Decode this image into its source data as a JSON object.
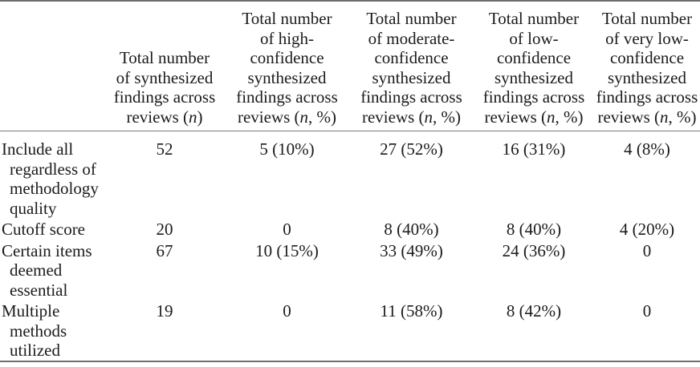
{
  "colors": {
    "text": "#1b1b1b",
    "rule": "#6e6e6e",
    "header_rule": "#7a7a7a",
    "background": "#ffffff"
  },
  "table": {
    "columns": [
      {
        "id": "strategy",
        "header_lines": []
      },
      {
        "id": "total-synthesized",
        "header_lines": [
          "Total number",
          "of synthesized",
          "findings across",
          "reviews (*n*)"
        ]
      },
      {
        "id": "high-confidence",
        "header_lines": [
          "Total number",
          "of high-",
          "confidence",
          "synthesized",
          "findings across",
          "reviews (*n*, %)"
        ]
      },
      {
        "id": "moderate-confidence",
        "header_lines": [
          "Total number",
          "of moderate-",
          "confidence",
          "synthesized",
          "findings across",
          "reviews (*n*, %)"
        ]
      },
      {
        "id": "low-confidence",
        "header_lines": [
          "Total number",
          "of low-",
          "confidence",
          "synthesized",
          "findings across",
          "reviews (*n*, %)"
        ]
      },
      {
        "id": "very-low-confidence",
        "header_lines": [
          "Total number",
          "of very low-",
          "confidence",
          "synthesized",
          "findings across",
          "reviews (*n*, %)"
        ]
      }
    ],
    "rows": [
      {
        "id": "include-all",
        "label_lines": [
          "Include all",
          "regardless of",
          "methodology",
          "quality"
        ],
        "values": [
          "52",
          "5 (10%)",
          "27 (52%)",
          "16 (31%)",
          "4 (8%)"
        ]
      },
      {
        "id": "cutoff-score",
        "label_lines": [
          "Cutoff score"
        ],
        "values": [
          "20",
          "0",
          "8 (40%)",
          "8 (40%)",
          "4 (20%)"
        ]
      },
      {
        "id": "certain-items",
        "label_lines": [
          "Certain items",
          "deemed",
          "essential"
        ],
        "values": [
          "67",
          "10 (15%)",
          "33 (49%)",
          "24 (36%)",
          "0"
        ]
      },
      {
        "id": "multiple-methods",
        "label_lines": [
          "Multiple",
          "methods",
          "utilized"
        ],
        "values": [
          "19",
          "0",
          "11 (58%)",
          "8 (42%)",
          "0"
        ]
      }
    ]
  }
}
